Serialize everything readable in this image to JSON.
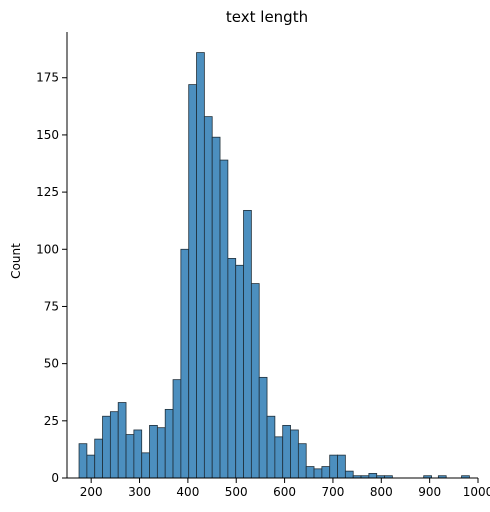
{
  "chart_data": {
    "type": "bar",
    "title": "text length",
    "xlabel": "",
    "ylabel": "Count",
    "xlim": [
      150,
      1000
    ],
    "ylim": [
      0,
      195
    ],
    "grid": false,
    "bar_color": "#4c8fbf",
    "edge_color": "#1f2f3a",
    "bin_width": 16.2,
    "bin_start": 174.9,
    "values": [
      15,
      10,
      17,
      27,
      29,
      33,
      19,
      21,
      11,
      23,
      22,
      30,
      43,
      100,
      172,
      186,
      158,
      149,
      139,
      96,
      93,
      117,
      85,
      44,
      27,
      18,
      23,
      21,
      15,
      5,
      4,
      5,
      10,
      10,
      3,
      1,
      1,
      2,
      1,
      1,
      0,
      0,
      0,
      0,
      1,
      0,
      0,
      0,
      0,
      0,
      0,
      0,
      0,
      0,
      0,
      0,
      0,
      0,
      0,
      0,
      0,
      0,
      0,
      0,
      0,
      0,
      0,
      0,
      0,
      0,
      0,
      0,
      0,
      0,
      0,
      0,
      0,
      0,
      0,
      0
    ],
    "sparse_bars": [
      {
        "x": 918,
        "value": 1
      },
      {
        "x": 966,
        "value": 1
      }
    ],
    "x_ticks": [
      200,
      300,
      400,
      500,
      600,
      700,
      800,
      900,
      1000
    ],
    "y_ticks": [
      0,
      25,
      50,
      75,
      100,
      125,
      150,
      175
    ]
  }
}
